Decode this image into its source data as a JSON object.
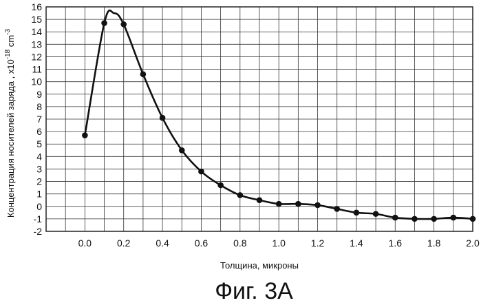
{
  "caption": "Фиг. 3А",
  "chart_data": {
    "type": "line",
    "title": "",
    "xlabel": "Толщина, микроны",
    "ylabel_main": "Концентрация носителей заряда , x10",
    "ylabel_exp1": "-18",
    "ylabel_unit": " cm",
    "ylabel_exp2": "-3",
    "xlim": [
      -0.2,
      2.0
    ],
    "ylim": [
      -2,
      16
    ],
    "grid": true,
    "x_ticks": [
      {
        "v": 0.0,
        "label": "0.0"
      },
      {
        "v": 0.2,
        "label": "0.2"
      },
      {
        "v": 0.4,
        "label": "0.4"
      },
      {
        "v": 0.6,
        "label": "0.6"
      },
      {
        "v": 0.8,
        "label": "0.8"
      },
      {
        "v": 1.0,
        "label": "1.0"
      },
      {
        "v": 1.2,
        "label": "1.2"
      },
      {
        "v": 1.4,
        "label": "1.4"
      },
      {
        "v": 1.6,
        "label": "1.6"
      },
      {
        "v": 1.8,
        "label": "1.8"
      },
      {
        "v": 2.0,
        "label": "2.0"
      }
    ],
    "y_ticks": [
      {
        "v": 16,
        "label": "16"
      },
      {
        "v": 15,
        "label": "15"
      },
      {
        "v": 14,
        "label": "14"
      },
      {
        "v": 13,
        "label": "13"
      },
      {
        "v": 12,
        "label": "12"
      },
      {
        "v": 11,
        "label": "11"
      },
      {
        "v": 10,
        "label": "10"
      },
      {
        "v": 9,
        "label": "9"
      },
      {
        "v": 8,
        "label": "8"
      },
      {
        "v": 7,
        "label": "7"
      },
      {
        "v": 6,
        "label": "6"
      },
      {
        "v": 5,
        "label": "5"
      },
      {
        "v": 4,
        "label": "4"
      },
      {
        "v": 3,
        "label": "3"
      },
      {
        "v": 2,
        "label": "2"
      },
      {
        "v": 1,
        "label": "1"
      },
      {
        "v": 0,
        "label": "0"
      },
      {
        "v": -1,
        "label": "-1"
      },
      {
        "v": -2,
        "label": "-2"
      }
    ],
    "series": [
      {
        "x": [
          0.0,
          0.1,
          0.2,
          0.3,
          0.4,
          0.5,
          0.6,
          0.7,
          0.8,
          0.9,
          1.0,
          1.1,
          1.2,
          1.3,
          1.4,
          1.5,
          1.6,
          1.7,
          1.8,
          1.9,
          2.0
        ],
        "y": [
          5.7,
          14.7,
          14.6,
          10.6,
          7.1,
          4.5,
          2.8,
          1.7,
          0.9,
          0.5,
          0.2,
          0.2,
          0.1,
          -0.2,
          -0.5,
          -0.6,
          -0.9,
          -1.0,
          -1.0,
          -0.9,
          -1.0
        ]
      }
    ],
    "curve_peak": {
      "x": 0.15,
      "y": 15.5
    },
    "color": "#111111"
  }
}
